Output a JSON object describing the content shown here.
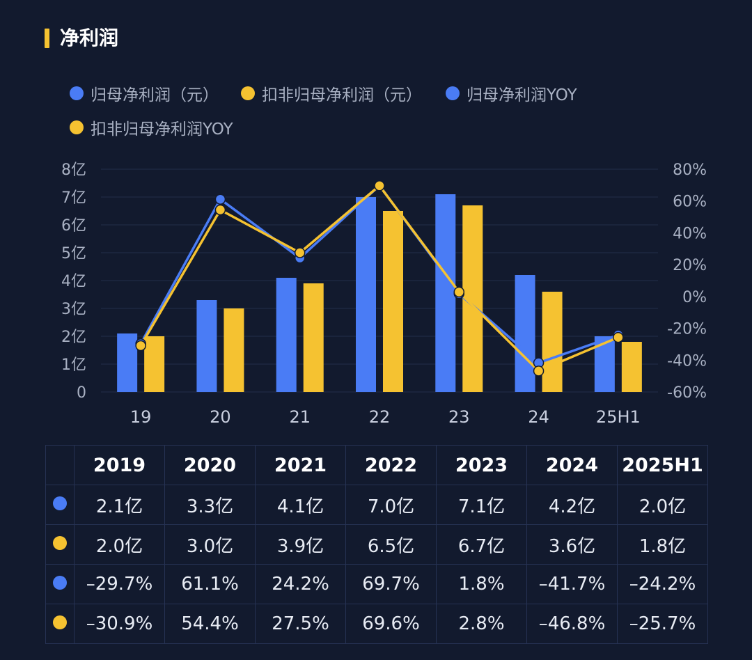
{
  "header": {
    "title": "净利润"
  },
  "colors": {
    "blue": "#4a7cf5",
    "yellow": "#f5c231"
  },
  "legend": [
    {
      "label": "归母净利润（元）",
      "color": "#4a7cf5"
    },
    {
      "label": "扣非归母净利润（元）",
      "color": "#f5c231"
    },
    {
      "label": "归母净利润YOY",
      "color": "#4a7cf5"
    },
    {
      "label": "扣非归母净利润YOY",
      "color": "#f5c231"
    }
  ],
  "chart_data": {
    "type": "bar",
    "categories": [
      "19",
      "20",
      "21",
      "22",
      "23",
      "24",
      "25H1"
    ],
    "y_left": {
      "ticks": [
        0,
        1,
        2,
        3,
        4,
        5,
        6,
        7,
        8
      ],
      "labels": [
        "0",
        "1亿",
        "2亿",
        "3亿",
        "4亿",
        "5亿",
        "6亿",
        "7亿",
        "8亿"
      ],
      "ylim": [
        0,
        8
      ]
    },
    "y_right": {
      "ticks": [
        -60,
        -40,
        -20,
        0,
        20,
        40,
        60,
        80
      ],
      "labels": [
        "-60%",
        "-40%",
        "-20%",
        "0%",
        "20%",
        "40%",
        "60%",
        "80%"
      ],
      "ylim": [
        -60,
        80
      ]
    },
    "series": [
      {
        "name": "归母净利润（元）",
        "type": "bar",
        "axis": "left",
        "color": "#4a7cf5",
        "values": [
          2.1,
          3.3,
          4.1,
          7.0,
          7.1,
          4.2,
          2.0
        ]
      },
      {
        "name": "扣非归母净利润（元）",
        "type": "bar",
        "axis": "left",
        "color": "#f5c231",
        "values": [
          2.0,
          3.0,
          3.9,
          6.5,
          6.7,
          3.6,
          1.8
        ]
      },
      {
        "name": "归母净利润YOY",
        "type": "line",
        "axis": "right",
        "color": "#4a7cf5",
        "values": [
          -29.7,
          61.1,
          24.2,
          69.7,
          1.8,
          -41.7,
          -24.2
        ]
      },
      {
        "name": "扣非归母净利润YOY",
        "type": "line",
        "axis": "right",
        "color": "#f5c231",
        "values": [
          -30.9,
          54.4,
          27.5,
          69.6,
          2.8,
          -46.8,
          -25.7
        ]
      }
    ]
  },
  "table": {
    "headers": [
      "2019",
      "2020",
      "2021",
      "2022",
      "2023",
      "2024",
      "2025H1"
    ],
    "rows": [
      {
        "color": "#4a7cf5",
        "cells": [
          "2.1亿",
          "3.3亿",
          "4.1亿",
          "7.0亿",
          "7.1亿",
          "4.2亿",
          "2.0亿"
        ]
      },
      {
        "color": "#f5c231",
        "cells": [
          "2.0亿",
          "3.0亿",
          "3.9亿",
          "6.5亿",
          "6.7亿",
          "3.6亿",
          "1.8亿"
        ]
      },
      {
        "color": "#4a7cf5",
        "cells": [
          "–29.7%",
          "61.1%",
          "24.2%",
          "69.7%",
          "1.8%",
          "–41.7%",
          "–24.2%"
        ]
      },
      {
        "color": "#f5c231",
        "cells": [
          "–30.9%",
          "54.4%",
          "27.5%",
          "69.6%",
          "2.8%",
          "–46.8%",
          "–25.7%"
        ]
      }
    ]
  }
}
